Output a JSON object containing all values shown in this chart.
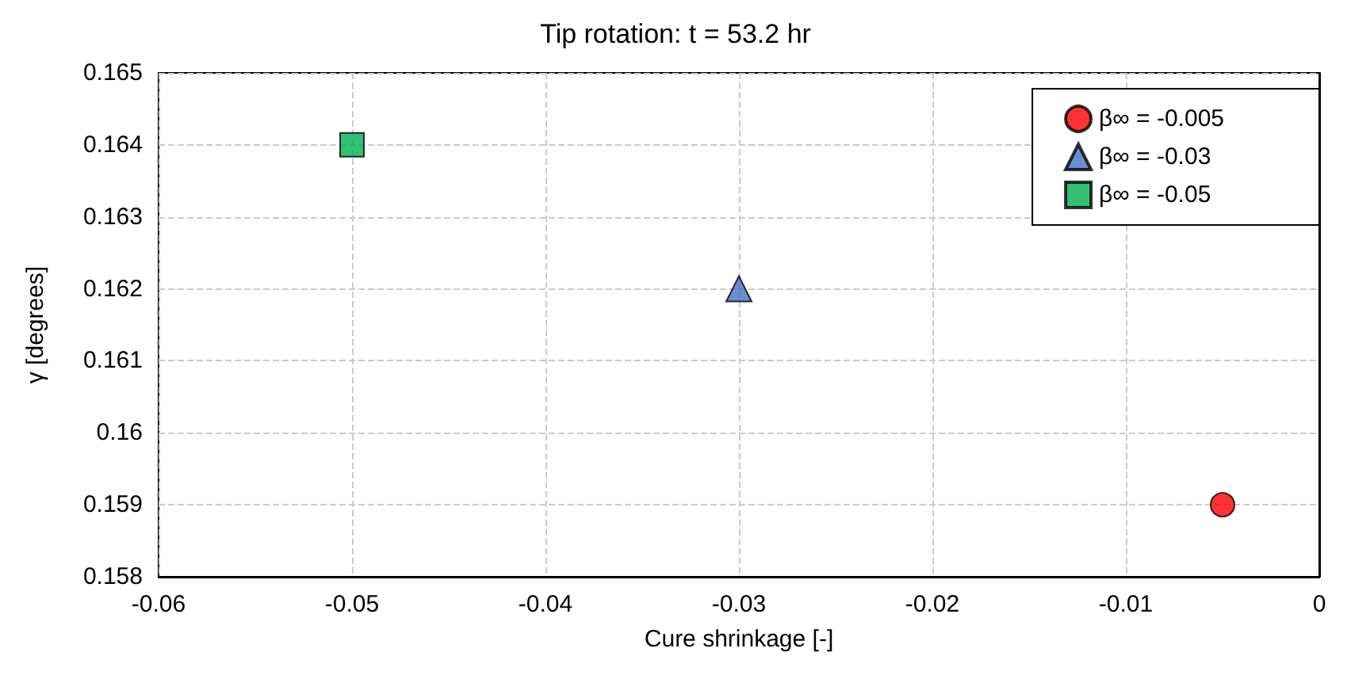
{
  "chart_data": {
    "type": "scatter",
    "title": "Tip rotation: t = 53.2 hr",
    "xlabel": "Cure shrinkage [-]",
    "ylabel": "γ [degrees]",
    "xlim": [
      -0.06,
      0
    ],
    "xticks": [
      -0.06,
      -0.05,
      -0.04,
      -0.03,
      -0.02,
      -0.01,
      0
    ],
    "ylim": [
      0.158,
      0.165
    ],
    "yticks": [
      0.158,
      0.159,
      0.16,
      0.161,
      0.162,
      0.163,
      0.164,
      0.165
    ],
    "grid": true,
    "legend": "top right",
    "series": [
      {
        "name": "β∞ = -0.005",
        "color": "#ff0000",
        "marker": "circle",
        "x": [
          -0.005
        ],
        "values": [
          0.159
        ]
      },
      {
        "name": "β∞ = -0.03",
        "color": "#4472c4",
        "marker": "triangle",
        "x": [
          -0.03
        ],
        "values": [
          0.162
        ]
      },
      {
        "name": "β∞ = -0.05",
        "color": "#00b050",
        "marker": "square",
        "x": [
          -0.05
        ],
        "values": [
          0.164
        ]
      }
    ]
  }
}
